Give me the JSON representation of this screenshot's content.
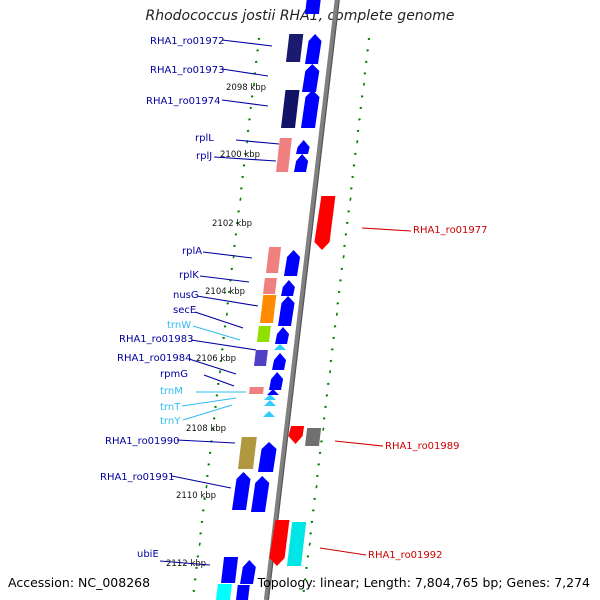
{
  "title": "Rhodococcus jostii RHA1, complete genome",
  "footer": {
    "accession": "Accession: NC_008268",
    "topology": "Topology: linear; Length: 7,804,765 bp; Genes: 7,274"
  },
  "colors": {
    "protein_plus": "#0000ff",
    "protein_plus_dark": "#00007f",
    "protein_minus": "#ff0000",
    "trna": "#33ccff",
    "scale_ticks": "#007f00",
    "backbone": "#808080",
    "label_plus": "#00009f",
    "label_minus": "#cc0000",
    "label_trna": "#33bbee"
  },
  "scale_labels": [
    "2098 kbp",
    "2100 kbp",
    "2102 kbp",
    "2104 kbp",
    "2106 kbp",
    "2108 kbp",
    "2110 kbp",
    "2112 kbp"
  ],
  "gene_labels": [
    {
      "text": "RHA1_ro01972",
      "strand": "plus",
      "kind": "protein"
    },
    {
      "text": "RHA1_ro01973",
      "strand": "plus",
      "kind": "protein"
    },
    {
      "text": "RHA1_ro01974",
      "strand": "plus",
      "kind": "protein"
    },
    {
      "text": "rplL",
      "strand": "plus",
      "kind": "protein"
    },
    {
      "text": "rplJ",
      "strand": "plus",
      "kind": "protein"
    },
    {
      "text": "rplA",
      "strand": "plus",
      "kind": "protein"
    },
    {
      "text": "rplK",
      "strand": "plus",
      "kind": "protein"
    },
    {
      "text": "nusG",
      "strand": "plus",
      "kind": "protein"
    },
    {
      "text": "secE",
      "strand": "plus",
      "kind": "protein"
    },
    {
      "text": "trnW",
      "strand": "plus",
      "kind": "trna"
    },
    {
      "text": "RHA1_ro01983",
      "strand": "plus",
      "kind": "protein"
    },
    {
      "text": "RHA1_ro01984",
      "strand": "plus",
      "kind": "protein"
    },
    {
      "text": "rpmG",
      "strand": "plus",
      "kind": "protein"
    },
    {
      "text": "trnM",
      "strand": "plus",
      "kind": "trna"
    },
    {
      "text": "trnT",
      "strand": "plus",
      "kind": "trna"
    },
    {
      "text": "trnY",
      "strand": "plus",
      "kind": "trna"
    },
    {
      "text": "RHA1_ro01990",
      "strand": "plus",
      "kind": "protein"
    },
    {
      "text": "RHA1_ro01991",
      "strand": "plus",
      "kind": "protein"
    },
    {
      "text": "ubiE",
      "strand": "plus",
      "kind": "protein"
    },
    {
      "text": "RHA1_ro01977",
      "strand": "minus",
      "kind": "protein"
    },
    {
      "text": "RHA1_ro01989",
      "strand": "minus",
      "kind": "protein"
    },
    {
      "text": "RHA1_ro01992",
      "strand": "minus",
      "kind": "protein"
    }
  ]
}
